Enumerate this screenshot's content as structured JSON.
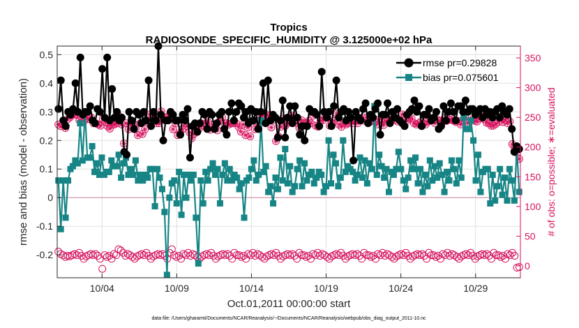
{
  "chart_data": {
    "type": "line",
    "title": "Tropics",
    "subtitle": "RADIOSONDE_SPECIFIC_HUMIDITY @ 3.125000e+02 hPa",
    "xlabel": "Oct.01,2011 00:00:00 start",
    "ylabel": "rmse and bias (model - observation)",
    "ylabel_right": "# of obs: o=possible; ∗=evaluated",
    "footnote": "data file: /Users/gharamti/Documents/NCAR/Reanalysis/~/Documents/NCAR/Reanalysis/webpub/obs_diag_output_2011-10.nc",
    "xlim": [
      0.5,
      31.5
    ],
    "ylim": [
      -0.28,
      0.53
    ],
    "ylim_right": [
      -20,
      370
    ],
    "x_ticks": [
      3.5,
      8.5,
      13.5,
      18.5,
      23.5,
      28.5
    ],
    "x_tick_labels": [
      "10/04",
      "10/09",
      "10/14",
      "10/19",
      "10/24",
      "10/29"
    ],
    "y_ticks": [
      -0.2,
      -0.1,
      0,
      0.1,
      0.2,
      0.3,
      0.4,
      0.5
    ],
    "y_tick_labels": [
      "-0.2",
      "-0.1",
      "0",
      "0.1",
      "0.2",
      "0.3",
      "0.4",
      "0.5"
    ],
    "y_ticks_right": [
      0,
      50,
      100,
      150,
      200,
      250,
      300,
      350
    ],
    "y_tick_labels_right": [
      "0",
      "50",
      "100",
      "150",
      "200",
      "250",
      "300",
      "350"
    ],
    "grid": true,
    "legend_position": "top-right",
    "series": [
      {
        "name": "rmse pr=0.29828",
        "axis": "left",
        "color": "#000000",
        "marker": "circle",
        "values": [
          0.31,
          0.41,
          0.27,
          0.25,
          0.3,
          0.29,
          0.31,
          0.4,
          0.3,
          0.49,
          0.29,
          0.3,
          0.3,
          0.32,
          0.27,
          0.26,
          0.31,
          0.3,
          0.45,
          0.28,
          0.49,
          0.27,
          0.38,
          0.28,
          0.3,
          0.27,
          0.28,
          0.16,
          0.15,
          0.3,
          0.27,
          0.24,
          0.3,
          0.29,
          0.26,
          0.3,
          0.27,
          0.41,
          0.25,
          0.3,
          0.27,
          0.53,
          0.29,
          0.2,
          0.27,
          0.27,
          0.3,
          0.29,
          0.27,
          0.27,
          0.22,
          0.29,
          0.27,
          0.31,
          0.14,
          0.25,
          0.26,
          0.23,
          0.26,
          0.3,
          0.29,
          0.24,
          0.3,
          0.29,
          0.24,
          0.26,
          0.29,
          0.3,
          0.24,
          0.22,
          0.3,
          0.33,
          0.27,
          0.3,
          0.33,
          0.32,
          0.28,
          0.3,
          0.26,
          0.31,
          0.27,
          0.3,
          0.24,
          0.3,
          0.4,
          0.26,
          0.41,
          0.27,
          0.29,
          0.28,
          0.21,
          0.27,
          0.34,
          0.21,
          0.28,
          0.32,
          0.26,
          0.32,
          0.28,
          0.22,
          0.25,
          0.2,
          0.25,
          0.31,
          0.3,
          0.3,
          0.29,
          0.25,
          0.44,
          0.3,
          0.28,
          0.3,
          0.25,
          0.32,
          0.41,
          0.28,
          0.3,
          0.31,
          0.27,
          0.3,
          0.28,
          0.13,
          0.3,
          0.28,
          0.27,
          0.31,
          0.33,
          0.26,
          0.29,
          0.28,
          0.31,
          0.33,
          0.22,
          0.29,
          0.29,
          0.33,
          0.26,
          0.3,
          0.28,
          0.31,
          0.27,
          0.26,
          0.25,
          0.29,
          0.3,
          0.31,
          0.34,
          0.3,
          0.32,
          0.25,
          0.29,
          0.29,
          0.31,
          0.27,
          0.28,
          0.3,
          0.24,
          0.25,
          0.32,
          0.27,
          0.3,
          0.33,
          0.3,
          0.27,
          0.32,
          0.32,
          0.3,
          0.34,
          0.3,
          0.31,
          0.31,
          0.29,
          0.3,
          0.31,
          0.28,
          0.31,
          0.29,
          0.3,
          0.28,
          0.3,
          0.31,
          0.28,
          0.32,
          0.3,
          0.29,
          0.31,
          0.24,
          0.16,
          0.18,
          0.17
        ]
      },
      {
        "name": "bias pr=0.075601",
        "axis": "left",
        "color": "#178585",
        "marker": "square",
        "values": [
          0.06,
          -0.11,
          0.06,
          -0.07,
          0.06,
          0.1,
          0.11,
          0.13,
          0.12,
          0.26,
          0.13,
          0.3,
          0.14,
          0.14,
          0.18,
          0.09,
          0.12,
          0.08,
          0.14,
          0.08,
          0.09,
          0.09,
          0.13,
          0.11,
          0.11,
          0.15,
          0.07,
          0.12,
          0.14,
          0.08,
          0.1,
          0.08,
          0.13,
          0.06,
          0.08,
          0.06,
          0.08,
          0.07,
          0.1,
          0.1,
          -0.03,
          0.1,
          0.07,
          0.03,
          -0.05,
          -0.27,
          0.0,
          0.05,
          0.06,
          -0.02,
          0.09,
          -0.06,
          0.08,
          0.0,
          0.08,
          0.06,
          0.08,
          -0.07,
          -0.23,
          0.06,
          -0.02,
          0.09,
          0.06,
          0.1,
          0.12,
          0.08,
          0.1,
          -0.02,
          0.08,
          0.12,
          0.06,
          0.1,
          0.06,
          0.08,
          0.07,
          0.03,
          0.05,
          -0.07,
          0.06,
          0.07,
          0.1,
          0.13,
          0.06,
          0.08,
          0.27,
          0.09,
          0.11,
          0.02,
          0.04,
          -0.02,
          0.07,
          0.03,
          0.14,
          0.06,
          0.17,
          0.05,
          0.11,
          0.02,
          0.04,
          0.1,
          0.13,
          0.04,
          0.12,
          0.06,
          0.08,
          0.09,
          0.05,
          0.07,
          0.09,
          0.08,
          0.02,
          0.04,
          0.2,
          0.05,
          0.15,
          0.12,
          0.04,
          0.07,
          0.2,
          0.09,
          0.11,
          0.1,
          0.09,
          0.06,
          0.08,
          0.14,
          0.07,
          0.13,
          0.05,
          0.12,
          0.1,
          0.32,
          0.08,
          0.15,
          0.11,
          0.07,
          0.1,
          0.02,
          0.09,
          0.08,
          0.1,
          0.16,
          0.1,
          0.06,
          0.03,
          0.07,
          0.13,
          0.1,
          0.14,
          0.05,
          0.1,
          0.02,
          0.08,
          0.04,
          0.13,
          0.06,
          0.11,
          0.07,
          0.12,
          0.08,
          0.02,
          0.09,
          0.06,
          0.13,
          0.1,
          0.05,
          0.13,
          0.07,
          0.28,
          0.24,
          0.24,
          0.27,
          0.2,
          0.06,
          0.15,
          0.02,
          0.09,
          0.1,
          0.1,
          -0.02,
          0.08,
          -0.01,
          0.04,
          0.1,
          0.01,
          0.07,
          -0.01,
          0.1,
          0.06,
          -0.01,
          0.17,
          0.02
        ]
      },
      {
        "name": "possible",
        "axis": "right",
        "color": "#d6125e",
        "marker": "o",
        "values": [
          238,
          235,
          238,
          232,
          247,
          250,
          254,
          255,
          254,
          245,
          242,
          244,
          250,
          247,
          250,
          240,
          240,
          238,
          236,
          248,
          242,
          235,
          231,
          238,
          238,
          240,
          252,
          238,
          206,
          240,
          230,
          238,
          240,
          230,
          220,
          240,
          222,
          230,
          243,
          255,
          248,
          252,
          240,
          240,
          260,
          246,
          250,
          252,
          258,
          230,
          240,
          220,
          224,
          230,
          240,
          235,
          225,
          215,
          222,
          232,
          230,
          240,
          236,
          240,
          242,
          229,
          238,
          234,
          228,
          244,
          250,
          240,
          240,
          238,
          240,
          240,
          240,
          234,
          226,
          238,
          220,
          233,
          218,
          244,
          230,
          238,
          245,
          252,
          255,
          255,
          252,
          233,
          246,
          210,
          218,
          234,
          248,
          236,
          240,
          243,
          253,
          244,
          240,
          232,
          245,
          240,
          240,
          244,
          240,
          253,
          236,
          234,
          244,
          245,
          250,
          249,
          236,
          240,
          244,
          256,
          238,
          234,
          240,
          238,
          240,
          245,
          240,
          246,
          240,
          246,
          250,
          244,
          250,
          242,
          244,
          247,
          238,
          246,
          242,
          237,
          244,
          246,
          244,
          248,
          246,
          243,
          245,
          255,
          252,
          244,
          248,
          248,
          240,
          238,
          240,
          243,
          240,
          238,
          243,
          244,
          248,
          240,
          246,
          244,
          241,
          248,
          244,
          246,
          246,
          244,
          242,
          244,
          238,
          245,
          254,
          240,
          244,
          246,
          244,
          243,
          248,
          252,
          247,
          241,
          240,
          236,
          236,
          239,
          242,
          248,
          242,
          246,
          240,
          243,
          205,
          198,
          190,
          180
        ]
      },
      {
        "name": "evaluated",
        "axis": "right",
        "color": "#d6125e",
        "marker": "asterisk",
        "values": [
          238,
          235,
          238,
          232,
          247,
          250,
          254,
          255,
          254,
          245,
          242,
          244,
          250,
          247,
          250,
          240,
          240,
          238,
          236,
          248,
          242,
          235,
          231,
          238,
          238,
          240,
          252,
          238,
          206,
          240,
          230,
          238,
          240,
          230,
          220,
          240,
          222,
          230,
          243,
          255,
          248,
          252,
          240,
          240,
          260,
          246,
          250,
          252,
          258,
          230,
          240,
          220,
          224,
          230,
          240,
          235,
          225,
          215,
          222,
          232,
          230,
          240,
          236,
          240,
          242,
          229,
          238,
          234,
          228,
          244,
          250,
          240,
          240,
          238,
          240,
          240,
          240,
          234,
          226,
          238,
          220,
          233,
          218,
          244,
          230,
          238,
          245,
          252,
          255,
          255,
          252,
          233,
          246,
          210,
          218,
          234,
          248,
          236,
          240,
          243,
          253,
          244,
          240,
          232,
          245,
          240,
          240,
          244,
          240,
          253,
          236,
          234,
          244,
          245,
          250,
          249,
          236,
          240,
          244,
          256,
          238,
          234,
          240,
          238,
          240,
          245,
          240,
          246,
          240,
          246,
          250,
          244,
          250,
          242,
          244,
          247,
          238,
          246,
          242,
          237,
          244,
          246,
          244,
          248,
          246,
          243,
          245,
          255,
          252,
          244,
          248,
          248,
          240,
          238,
          240,
          243,
          240,
          238,
          243,
          244,
          248,
          240,
          246,
          244,
          241,
          248,
          244,
          246,
          246,
          244,
          242,
          244,
          238,
          245,
          254,
          240,
          244,
          246,
          244,
          243,
          248,
          252,
          247,
          241,
          240,
          236,
          236,
          239,
          242,
          248,
          242,
          246,
          240,
          243,
          205,
          198,
          190,
          180
        ]
      },
      {
        "name": "possible-lower",
        "axis": "right",
        "color": "#d6125e",
        "marker": "o",
        "values": [
          24,
          20,
          18,
          15,
          17,
          16,
          18,
          20,
          18,
          22,
          17,
          12,
          16,
          18,
          20,
          18,
          20,
          17,
          12,
          -5,
          18,
          15,
          17,
          12,
          20,
          18,
          28,
          26,
          22,
          17,
          20,
          18,
          15,
          12,
          16,
          18,
          20,
          18,
          22,
          17,
          12,
          16,
          18,
          20,
          18,
          20,
          17,
          12,
          22,
          28,
          18,
          15,
          17,
          12,
          20,
          18,
          22,
          17,
          20,
          18,
          15,
          12,
          16,
          18,
          20,
          18,
          22,
          17,
          12,
          16,
          18,
          20,
          18,
          20,
          17,
          12,
          22,
          18,
          18,
          15,
          17,
          12,
          20,
          18,
          22,
          17,
          20,
          18,
          15,
          12,
          16,
          18,
          20,
          18,
          22,
          17,
          12,
          16,
          18,
          20,
          18,
          20,
          17,
          12,
          22,
          18,
          18,
          15,
          17,
          12,
          20,
          18,
          22,
          17,
          20,
          18,
          15,
          12,
          16,
          18,
          20,
          18,
          22,
          17,
          12,
          16,
          18,
          20,
          18,
          20,
          17,
          12,
          22,
          18,
          18,
          15,
          17,
          12,
          20,
          18,
          22,
          17,
          20,
          18,
          15,
          12,
          16,
          18,
          20,
          18,
          22,
          17,
          12,
          16,
          18,
          20,
          18,
          20,
          17,
          12,
          22,
          18,
          18,
          15,
          17,
          12,
          20,
          18,
          22,
          17,
          20,
          18,
          15,
          12,
          16,
          18,
          20,
          18,
          22,
          17,
          12,
          16,
          18,
          20,
          18,
          20,
          17,
          12,
          22,
          18,
          18,
          15,
          17,
          12,
          20,
          18,
          22,
          17,
          -3,
          -2
        ]
      }
    ]
  }
}
